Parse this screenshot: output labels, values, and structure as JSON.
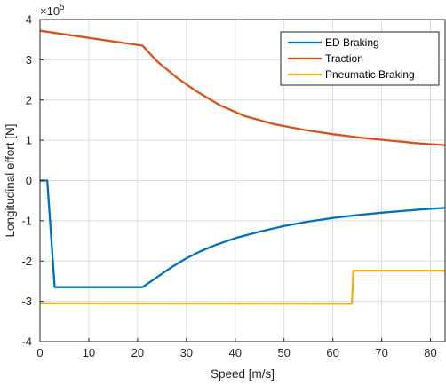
{
  "chart_data": {
    "type": "line",
    "title": "",
    "xlabel": "Speed [m/s]",
    "ylabel": "Longitudinal effort [N]",
    "exponent_label": "×10",
    "exponent_power": "5",
    "xlim": [
      0,
      83
    ],
    "ylim": [
      -400000,
      400000
    ],
    "x_ticks": [
      0,
      10,
      20,
      30,
      40,
      50,
      60,
      70,
      80
    ],
    "x_tick_labels": [
      "0",
      "10",
      "20",
      "30",
      "40",
      "50",
      "60",
      "70",
      "80"
    ],
    "y_ticks": [
      -400000,
      -300000,
      -200000,
      -100000,
      0,
      100000,
      200000,
      300000,
      400000
    ],
    "y_tick_labels": [
      "-4",
      "-3",
      "-2",
      "-1",
      "0",
      "1",
      "2",
      "3",
      "4"
    ],
    "grid": true,
    "legend_position": "top-right",
    "series": [
      {
        "name": "ED Braking",
        "color": "#0072BD",
        "x": [
          0,
          1.5,
          3,
          21,
          24,
          27,
          30,
          33,
          36,
          40,
          45,
          50,
          55,
          60,
          65,
          70,
          75,
          80,
          83
        ],
        "y": [
          0,
          0,
          -265000,
          -265000,
          -240000,
          -215000,
          -193000,
          -175000,
          -160000,
          -143000,
          -127000,
          -113000,
          -102000,
          -93000,
          -86000,
          -80000,
          -75000,
          -70000,
          -68000
        ]
      },
      {
        "name": "Traction",
        "color": "#D95319",
        "x": [
          0,
          21,
          24,
          28,
          32,
          37,
          42,
          48,
          54,
          60,
          66,
          72,
          78,
          83
        ],
        "y": [
          372000,
          335000,
          296000,
          256000,
          222000,
          186000,
          160000,
          140000,
          126000,
          115000,
          106000,
          99000,
          92000,
          88000
        ]
      },
      {
        "name": "Pneumatic Braking",
        "color": "#EDB120",
        "x": [
          0,
          63.9,
          64.2,
          83
        ],
        "y": [
          -305000,
          -306000,
          -224000,
          -224000
        ]
      }
    ]
  }
}
